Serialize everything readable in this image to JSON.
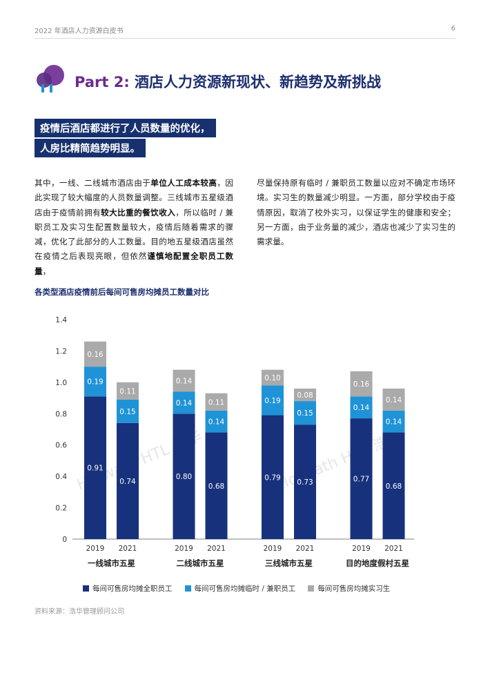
{
  "header": {
    "title": "2022 年酒店人力资源白皮书",
    "page_number": "6"
  },
  "section": {
    "part_label": "Part 2:",
    "part_title": " 酒店人力资源新现状、新趋势及新挑战"
  },
  "highlight": {
    "line1": "疫情后酒店都进行了人员数量的优化，",
    "line2": "人房比精简趋势明显。"
  },
  "body": {
    "left_segments": [
      {
        "text": "其中，一线、二线城市酒店由于",
        "bold": false
      },
      {
        "text": "单位人工成本较高",
        "bold": true
      },
      {
        "text": "，因此实现了较大幅度的人员数量调整。三线城市五星级酒店由于疫情前拥有",
        "bold": false
      },
      {
        "text": "较大比重的餐饮收入",
        "bold": true
      },
      {
        "text": "，所以临时 / 兼职员工及实习生配置数量较大，疫情后随着需求的骤减，优化了此部分的人工数量。目的地五星级酒店虽然在疫情之后表现亮眼，但依然",
        "bold": false
      },
      {
        "text": "谨慎地配置全职员工数量",
        "bold": true
      },
      {
        "text": "，",
        "bold": false
      }
    ],
    "right_text": "尽量保持原有临时 / 兼职员工数量以应对不确定市场环境。实习生的数量减少明显。一方面，部分学校由于疫情原因，取消了校外实习，以保证学生的健康和安全；另一方面，由于业务量的减少，酒店也减少了实习生的需求量。"
  },
  "chart_title": "各类型酒店疫情前后每间可售房均摊员工数量对比",
  "chart_data": {
    "type": "bar",
    "stacked": true,
    "groups": [
      "一线城市五星",
      "二线城市五星",
      "三线城市五星",
      "目的地度假村五星"
    ],
    "years": [
      "2019",
      "2021"
    ],
    "series": [
      {
        "name": "每间可售房均摊全职员工",
        "color": "#17317c",
        "values": [
          [
            0.91,
            0.74
          ],
          [
            0.8,
            0.68
          ],
          [
            0.79,
            0.73
          ],
          [
            0.77,
            0.68
          ]
        ]
      },
      {
        "name": "每间可售房均摊临时 / 兼职员工",
        "color": "#1f93d6",
        "values": [
          [
            0.19,
            0.15
          ],
          [
            0.14,
            0.14
          ],
          [
            0.19,
            0.15
          ],
          [
            0.14,
            0.14
          ]
        ]
      },
      {
        "name": "每间可售房均摊实习生",
        "color": "#aaaaaa",
        "values": [
          [
            0.16,
            0.11
          ],
          [
            0.14,
            0.11
          ],
          [
            0.1,
            0.08
          ],
          [
            0.16,
            0.14
          ]
        ]
      }
    ],
    "yticks": [
      "0",
      "0.2",
      "0.4",
      "0.6",
      "0.8",
      "1.0",
      "1.2",
      "1.4"
    ],
    "ylim": [
      0,
      1.4
    ],
    "watermark": "Horwath HTL 浩华"
  },
  "source": "资料来源：浩华管理顾问公司",
  "colors": {
    "navy": "#17316e",
    "purple": "#6a2c8c",
    "icon_purple": "#7a3e9d",
    "icon_blue": "#1f93d6"
  }
}
